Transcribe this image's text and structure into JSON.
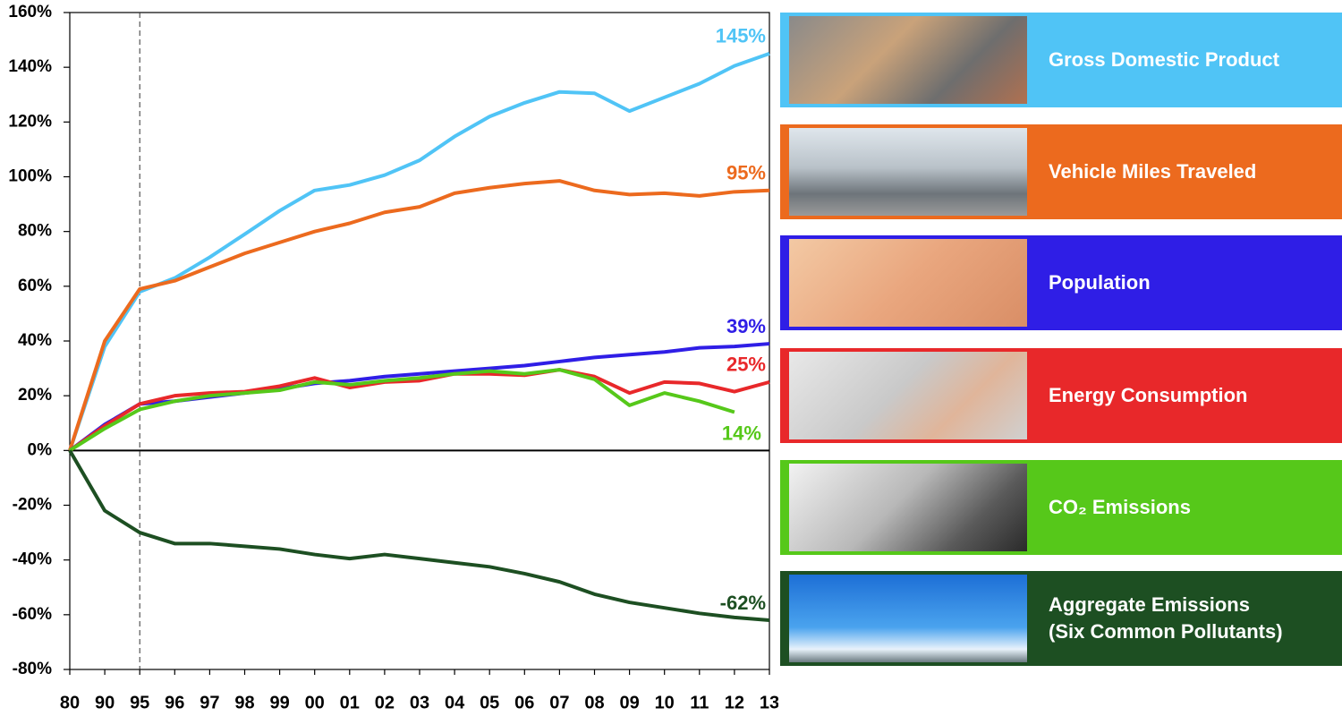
{
  "chart_data": {
    "type": "line",
    "categories": [
      "80",
      "90",
      "95",
      "96",
      "97",
      "98",
      "99",
      "00",
      "01",
      "02",
      "03",
      "04",
      "05",
      "06",
      "07",
      "08",
      "09",
      "10",
      "11",
      "12",
      "13"
    ],
    "ylim": [
      -80,
      160
    ],
    "yticks": [
      {
        "value": -80,
        "label": "-80%"
      },
      {
        "value": -60,
        "label": "-60%"
      },
      {
        "value": -40,
        "label": "-40%"
      },
      {
        "value": -20,
        "label": "-20%"
      },
      {
        "value": 0,
        "label": "0%"
      },
      {
        "value": 20,
        "label": "20%"
      },
      {
        "value": 40,
        "label": "40%"
      },
      {
        "value": 60,
        "label": "60%"
      },
      {
        "value": 80,
        "label": "80%"
      },
      {
        "value": 100,
        "label": "100%"
      },
      {
        "value": 120,
        "label": "120%"
      },
      {
        "value": 140,
        "label": "140%"
      },
      {
        "value": 160,
        "label": "160%"
      }
    ],
    "series": [
      {
        "name": "Gross Domestic Product",
        "color": "#50c4f6",
        "label": "145%",
        "values": [
          0,
          38,
          58,
          63,
          70.6,
          79,
          87.6,
          95,
          97,
          100.6,
          106,
          114.7,
          122,
          127,
          131,
          130.5,
          124,
          129,
          134,
          140.5,
          145
        ]
      },
      {
        "name": "Vehicle Miles Traveled",
        "color": "#ec6a1e",
        "label": "95%",
        "values": [
          0,
          40,
          59,
          62,
          67,
          72,
          76,
          80,
          83,
          87,
          89,
          94,
          96,
          97.5,
          98.5,
          95,
          93.5,
          94,
          93,
          94.5,
          95
        ]
      },
      {
        "name": "Population",
        "color": "#2f1ee6",
        "label": "39%",
        "values": [
          0,
          9.5,
          17,
          18,
          19.5,
          21,
          22.5,
          24.5,
          25.5,
          27,
          28,
          29,
          30,
          31,
          32.5,
          34,
          35,
          36,
          37.5,
          38,
          39
        ]
      },
      {
        "name": "Energy Consumption",
        "color": "#e8282a",
        "label": "25%",
        "values": [
          0,
          9,
          17,
          20,
          21,
          21.5,
          23.5,
          26.5,
          23,
          25,
          25.5,
          28,
          28,
          27.5,
          29.5,
          27,
          21,
          25,
          24.5,
          21.5,
          25
        ]
      },
      {
        "name": "CO₂ Emissions",
        "color": "#56c81a",
        "label": "14%",
        "values": [
          0,
          8,
          15,
          18,
          20,
          21,
          22,
          25,
          24,
          25.5,
          26.5,
          28,
          29,
          28,
          29.5,
          26,
          16.5,
          21,
          18,
          14,
          null
        ]
      },
      {
        "name": "Aggregate Emissions\n(Six Common Pollutants)",
        "color": "#1d4f22",
        "label": "-62%",
        "values": [
          0,
          -22,
          -30,
          -34,
          -34,
          -35,
          -36,
          -38,
          -39.5,
          -38,
          -39.5,
          -41,
          -42.5,
          -45,
          -48,
          -52.5,
          -55.5,
          -57.5,
          -59.5,
          -61,
          -62
        ]
      }
    ]
  }
}
